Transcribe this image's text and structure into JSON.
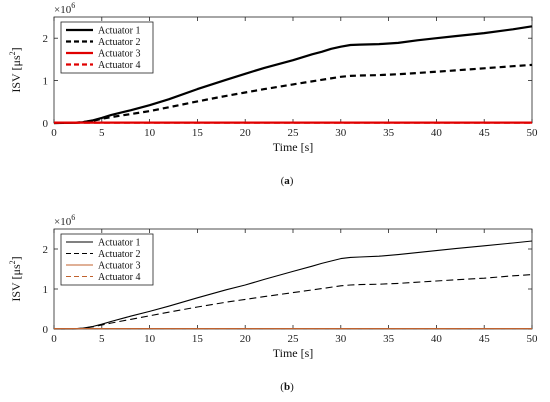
{
  "chart_data": [
    {
      "type": "line",
      "panel_label": "(a)",
      "multiplier_label": "×10",
      "multiplier_exp": "6",
      "xlabel": "Time [s]",
      "ylabel_prefix": "ISV [μs",
      "ylabel_exp": "2",
      "ylabel_suffix": "]",
      "xlim": [
        0,
        50
      ],
      "ylim": [
        0,
        2.5
      ],
      "x_ticks": [
        0,
        5,
        10,
        15,
        20,
        25,
        30,
        35,
        40,
        45,
        50
      ],
      "y_ticks": [
        0,
        1,
        2
      ],
      "grid": false,
      "legend_position": "top-left",
      "line_width": "thick",
      "series": [
        {
          "name": "Actuator 1",
          "color": "#000000",
          "dash": "solid",
          "x": [
            0,
            2,
            3,
            4,
            5,
            6,
            8,
            10,
            12,
            15,
            18,
            20,
            22,
            25,
            27,
            28,
            29,
            30,
            31,
            32,
            34,
            36,
            38,
            40,
            42,
            45,
            48,
            50
          ],
          "y": [
            0,
            0.005,
            0.02,
            0.06,
            0.12,
            0.19,
            0.3,
            0.42,
            0.56,
            0.8,
            1.02,
            1.16,
            1.3,
            1.48,
            1.62,
            1.68,
            1.75,
            1.8,
            1.84,
            1.85,
            1.86,
            1.89,
            1.95,
            2.0,
            2.05,
            2.12,
            2.21,
            2.28
          ]
        },
        {
          "name": "Actuator 2",
          "color": "#000000",
          "dash": "dash",
          "x": [
            0,
            2,
            3,
            4,
            5,
            6,
            8,
            10,
            12,
            15,
            18,
            20,
            22,
            25,
            28,
            30,
            31,
            32,
            34,
            36,
            38,
            40,
            42,
            45,
            48,
            50
          ],
          "y": [
            0,
            0.005,
            0.02,
            0.05,
            0.1,
            0.14,
            0.21,
            0.28,
            0.37,
            0.51,
            0.64,
            0.72,
            0.8,
            0.91,
            1.02,
            1.09,
            1.11,
            1.12,
            1.13,
            1.15,
            1.18,
            1.21,
            1.24,
            1.29,
            1.34,
            1.37
          ]
        },
        {
          "name": "Actuator 3",
          "color": "#e00000",
          "dash": "solid",
          "x": [
            0,
            50
          ],
          "y": [
            0.01,
            0.01
          ]
        },
        {
          "name": "Actuator 4",
          "color": "#e00000",
          "dash": "dash",
          "x": [
            0,
            50
          ],
          "y": [
            0.01,
            0.01
          ]
        }
      ]
    },
    {
      "type": "line",
      "panel_label": "(b)",
      "multiplier_label": "×10",
      "multiplier_exp": "6",
      "xlabel": "Time [s]",
      "ylabel_prefix": "ISV [μs",
      "ylabel_exp": "2",
      "ylabel_suffix": "]",
      "xlim": [
        0,
        50
      ],
      "ylim": [
        0,
        2.5
      ],
      "x_ticks": [
        0,
        5,
        10,
        15,
        20,
        25,
        30,
        35,
        40,
        45,
        50
      ],
      "y_ticks": [
        0,
        1,
        2
      ],
      "grid": false,
      "legend_position": "top-left",
      "line_width": "thin",
      "series": [
        {
          "name": "Actuator 1",
          "color": "#000000",
          "dash": "solid",
          "x": [
            0,
            2,
            3,
            4,
            5,
            6,
            8,
            10,
            12,
            15,
            18,
            20,
            22,
            25,
            27,
            28,
            29,
            30,
            31,
            32,
            34,
            36,
            38,
            40,
            42,
            45,
            48,
            50
          ],
          "y": [
            0,
            0.005,
            0.02,
            0.06,
            0.12,
            0.19,
            0.32,
            0.44,
            0.57,
            0.78,
            0.98,
            1.1,
            1.24,
            1.44,
            1.57,
            1.64,
            1.7,
            1.76,
            1.79,
            1.8,
            1.82,
            1.86,
            1.91,
            1.96,
            2.01,
            2.08,
            2.15,
            2.2
          ]
        },
        {
          "name": "Actuator 2",
          "color": "#000000",
          "dash": "dash",
          "x": [
            0,
            2,
            3,
            4,
            5,
            6,
            8,
            10,
            12,
            15,
            18,
            20,
            22,
            25,
            28,
            30,
            31,
            32,
            34,
            36,
            38,
            40,
            42,
            45,
            48,
            50
          ],
          "y": [
            0,
            0.005,
            0.02,
            0.05,
            0.1,
            0.15,
            0.24,
            0.33,
            0.42,
            0.55,
            0.67,
            0.74,
            0.81,
            0.91,
            1.01,
            1.08,
            1.1,
            1.11,
            1.12,
            1.14,
            1.17,
            1.2,
            1.23,
            1.27,
            1.33,
            1.36
          ]
        },
        {
          "name": "Actuator 3",
          "color": "#c0622e",
          "dash": "solid",
          "x": [
            0,
            50
          ],
          "y": [
            0.01,
            0.01
          ]
        },
        {
          "name": "Actuator 4",
          "color": "#c0622e",
          "dash": "dash",
          "x": [
            0,
            50
          ],
          "y": [
            0.01,
            0.01
          ]
        }
      ]
    }
  ]
}
